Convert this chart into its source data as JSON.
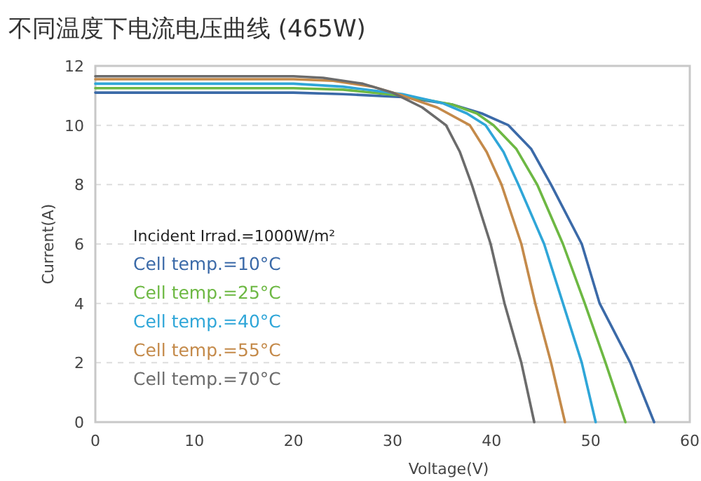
{
  "chart_data": {
    "type": "line",
    "title": "不同温度下电流电压曲线 (465W)",
    "xlabel": "Voltage(V)",
    "ylabel": "Current(A)",
    "xlim": [
      0,
      60
    ],
    "xticks": [
      0,
      10,
      20,
      30,
      40,
      50,
      60
    ],
    "ylim": [
      0,
      12
    ],
    "yticks": [
      0,
      2,
      4,
      6,
      8,
      10,
      12
    ],
    "grid": "y",
    "legend": "left",
    "marker": "none",
    "line_style": "solid",
    "annotations": [
      "Incident Irrad.=1000W/m²"
    ],
    "series": [
      {
        "name": "Cell temp.=10°C",
        "color": "#3b6aa8",
        "x": [
          0,
          20,
          25,
          31,
          36,
          39,
          41.7,
          44,
          46,
          49.1,
          50.9,
          54,
          56.4
        ],
        "values": [
          11.1,
          11.1,
          11.05,
          10.95,
          10.7,
          10.4,
          10,
          9.2,
          8,
          6,
          4,
          2,
          0
        ]
      },
      {
        "name": "Cell temp.=25°C",
        "color": "#6db843",
        "x": [
          0,
          20,
          25,
          31,
          36,
          38.5,
          40.2,
          42.5,
          44.6,
          47.2,
          49.4,
          51.5,
          53.5
        ],
        "values": [
          11.25,
          11.25,
          11.2,
          11.0,
          10.7,
          10.4,
          10,
          9.2,
          8,
          6,
          4,
          2,
          0
        ]
      },
      {
        "name": "Cell temp.=40°C",
        "color": "#2fa6d8",
        "x": [
          0,
          20,
          25,
          31,
          35,
          37.5,
          39.4,
          41.2,
          42.7,
          45.3,
          47.2,
          49.1,
          50.5
        ],
        "values": [
          11.4,
          11.4,
          11.3,
          11.05,
          10.75,
          10.4,
          10,
          9.1,
          8,
          6,
          4,
          2,
          0
        ]
      },
      {
        "name": "Cell temp.=55°C",
        "color": "#c48a4a",
        "x": [
          0,
          20,
          24,
          28,
          31,
          34.5,
          37.8,
          39.5,
          41,
          43,
          44.4,
          46,
          47.4
        ],
        "values": [
          11.55,
          11.55,
          11.5,
          11.3,
          11.0,
          10.6,
          10,
          9.1,
          8,
          6,
          4,
          2,
          0
        ]
      },
      {
        "name": "Cell temp.=70°C",
        "color": "#6b6b6b",
        "x": [
          0,
          20,
          23,
          27,
          30,
          33,
          35.4,
          36.8,
          38,
          39.9,
          41.3,
          43,
          44.3
        ],
        "values": [
          11.65,
          11.65,
          11.6,
          11.4,
          11.1,
          10.6,
          10,
          9.1,
          8,
          6,
          4,
          2,
          0
        ]
      }
    ]
  }
}
